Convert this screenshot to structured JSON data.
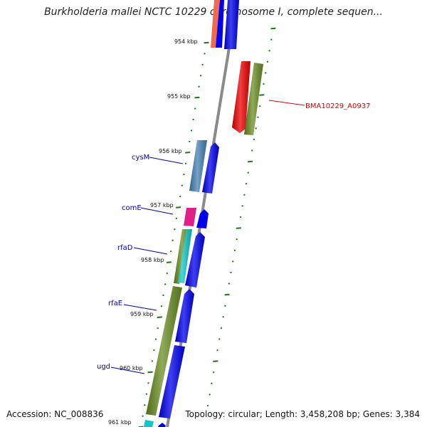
{
  "title": "Burkholderia mallei NCTC 10229 chromosome I, complete sequen...",
  "footer": {
    "accession": "Accession: NC_008836",
    "topology": "Topology: circular; Length: 3,458,208 bp; Genes: 3,384"
  },
  "ticks": [
    "954 kbp",
    "955 kbp",
    "956 kbp",
    "957 kbp",
    "958 kbp",
    "959 kbp",
    "960 kbp",
    "961 kbp"
  ],
  "gene_labels": [
    {
      "name": "BMA10229_A0937",
      "color": "#dd0000"
    },
    {
      "name": "cysM",
      "color": "#0000aa"
    },
    {
      "name": "comE",
      "color": "#0000aa"
    },
    {
      "name": "rfaD",
      "color": "#0000aa"
    },
    {
      "name": "rfaE",
      "color": "#0000aa"
    },
    {
      "name": "ugd",
      "color": "#0000aa"
    }
  ],
  "colors": {
    "backbone": "#8a8a8a",
    "tick": "#1a7a1a",
    "cds": "#0000ee",
    "gene_red": "#ee0000",
    "gene_olive": "#6b8e23",
    "gene_steel": "#4682b4",
    "gene_pink": "#e0208a",
    "gene_cyan": "#10c8c8",
    "gene_salmon": "#f06a50"
  }
}
